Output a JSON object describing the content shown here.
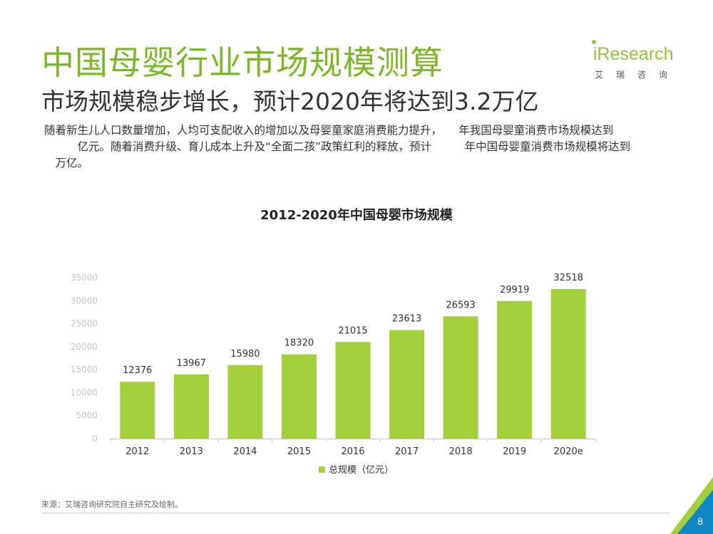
{
  "title": "中国母婴行业市场规模测算",
  "subtitle": "市场规模稳步增长，预计2020年将达到3.2万亿",
  "body_lines": [
    "随着新生儿人口数量增加，人均可支配收入的增加以及母婴童家庭消费能力提升，　　年我国母婴童消费市场规模达到",
    "　　　亿元。随着消费升级、育儿成本上升及“全面二孩”政策红利的释放，预计　　　年中国母婴童消费市场规模将达到",
    "　万亿。"
  ],
  "logo": {
    "brand": "iResearch",
    "sub": "艾瑞咨询"
  },
  "source": "来源：艾瑞咨询研究院自主研究及绘制。",
  "page_number": "8",
  "colors": {
    "accent": "#7ab825",
    "bar": "#a4cf3d",
    "axis": "#c0c0c0"
  },
  "chart_data": {
    "type": "bar",
    "title": "2012-2020年中国母婴市场规模",
    "categories": [
      "2012",
      "2013",
      "2014",
      "2015",
      "2016",
      "2017",
      "2018",
      "2019",
      "2020e"
    ],
    "series": [
      {
        "name": "总规模（亿元）",
        "values": [
          12376,
          13967,
          15980,
          18320,
          21015,
          23613,
          26593,
          29919,
          32518
        ]
      }
    ],
    "ylim": [
      0,
      35000
    ],
    "yticks": [
      0,
      5000,
      10000,
      15000,
      20000,
      25000,
      30000,
      35000
    ],
    "xlabel": "",
    "ylabel": "",
    "legend": "bottom",
    "grid": false
  }
}
